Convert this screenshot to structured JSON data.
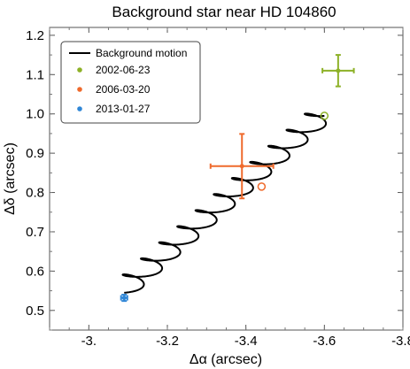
{
  "chart_data": {
    "type": "scatter",
    "title": "Background star near HD 104860",
    "xlabel": "Δα (arcsec)",
    "ylabel": "Δδ (arcsec)",
    "xlim": [
      -2.9,
      -3.8
    ],
    "ylim": [
      0.45,
      1.22
    ],
    "x_reversed": true,
    "grid": false,
    "legend_position": "top-left",
    "x_ticks": [
      -3.0,
      -3.2,
      -3.4,
      -3.6,
      -3.8
    ],
    "x_tick_labels": [
      "-3.",
      "-3.2",
      "-3.4",
      "-3.6",
      "-3.8"
    ],
    "y_ticks": [
      0.5,
      0.6,
      0.7,
      0.8,
      0.9,
      1.0,
      1.1,
      1.2
    ],
    "y_tick_labels": [
      "0.5",
      "0.6",
      "0.7",
      "0.8",
      "0.9",
      "1.0",
      "1.1",
      "1.2"
    ],
    "background_motion": {
      "name": "Background motion",
      "color": "#000000",
      "start": [
        -3.09,
        0.545
      ],
      "end": [
        -3.6,
        0.995
      ],
      "loops": 11,
      "loop_rx": 0.038,
      "loop_ry": 0.022
    },
    "series": [
      {
        "name": "2002-06-23",
        "color": "#8db127",
        "x": -3.635,
        "y": 1.11,
        "xerr": 0.04,
        "yerr": 0.04,
        "predicted": [
          -3.6,
          0.995
        ]
      },
      {
        "name": "2006-03-20",
        "color": "#ef6a2c",
        "x": -3.39,
        "y": 0.867,
        "xerr": 0.08,
        "yerr": 0.082,
        "predicted": [
          -3.44,
          0.815
        ]
      },
      {
        "name": "2013-01-27",
        "color": "#2f86d6",
        "x": -3.09,
        "y": 0.532,
        "xerr": 0.008,
        "yerr": 0.008,
        "predicted": [
          -3.09,
          0.532
        ]
      }
    ]
  }
}
